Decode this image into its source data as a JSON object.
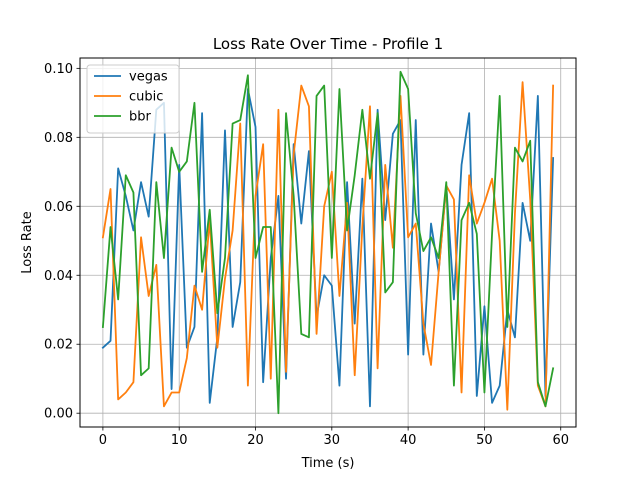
{
  "chart_data": {
    "type": "line",
    "title": "Loss Rate Over Time - Profile 1",
    "xlabel": "Time (s)",
    "ylabel": "Loss Rate",
    "xlim": [
      -3,
      62
    ],
    "ylim": [
      -0.004,
      0.103
    ],
    "xticks": [
      0,
      10,
      20,
      30,
      40,
      50,
      60
    ],
    "yticks": [
      0.0,
      0.02,
      0.04,
      0.06,
      0.08,
      0.1
    ],
    "xtick_labels": [
      "0",
      "10",
      "20",
      "30",
      "40",
      "50",
      "60"
    ],
    "ytick_labels": [
      "0.00",
      "0.02",
      "0.04",
      "0.06",
      "0.08",
      "0.10"
    ],
    "grid": true,
    "legend_position": "top-left",
    "x": [
      0,
      1,
      2,
      3,
      4,
      5,
      6,
      7,
      8,
      9,
      10,
      11,
      12,
      13,
      14,
      15,
      16,
      17,
      18,
      19,
      20,
      21,
      22,
      23,
      24,
      25,
      26,
      27,
      28,
      29,
      30,
      31,
      32,
      33,
      34,
      35,
      36,
      37,
      38,
      39,
      40,
      41,
      42,
      43,
      44,
      45,
      46,
      47,
      48,
      49,
      50,
      51,
      52,
      53,
      54,
      55,
      56,
      57,
      58,
      59
    ],
    "series": [
      {
        "name": "vegas",
        "color": "#1f77b4",
        "values": [
          0.019,
          0.021,
          0.071,
          0.063,
          0.053,
          0.067,
          0.057,
          0.088,
          0.09,
          0.007,
          0.072,
          0.019,
          0.025,
          0.087,
          0.003,
          0.022,
          0.082,
          0.025,
          0.038,
          0.094,
          0.083,
          0.009,
          0.045,
          0.063,
          0.01,
          0.078,
          0.055,
          0.076,
          0.028,
          0.04,
          0.037,
          0.008,
          0.067,
          0.026,
          0.068,
          0.002,
          0.088,
          0.056,
          0.081,
          0.085,
          0.017,
          0.085,
          0.017,
          0.055,
          0.041,
          0.066,
          0.033,
          0.072,
          0.087,
          0.005,
          0.031,
          0.003,
          0.008,
          0.03,
          0.022,
          0.061,
          0.05,
          0.092,
          0.005,
          0.074
        ]
      },
      {
        "name": "cubic",
        "color": "#ff7f0e",
        "values": [
          0.051,
          0.065,
          0.004,
          0.006,
          0.009,
          0.051,
          0.034,
          0.043,
          0.002,
          0.006,
          0.006,
          0.016,
          0.037,
          0.03,
          0.056,
          0.019,
          0.039,
          0.053,
          0.084,
          0.008,
          0.063,
          0.078,
          0.01,
          0.088,
          0.012,
          0.075,
          0.095,
          0.089,
          0.023,
          0.06,
          0.07,
          0.034,
          0.061,
          0.011,
          0.054,
          0.089,
          0.013,
          0.072,
          0.048,
          0.092,
          0.051,
          0.055,
          0.026,
          0.014,
          0.041,
          0.066,
          0.062,
          0.006,
          0.069,
          0.055,
          0.061,
          0.068,
          0.05,
          0.001,
          0.058,
          0.096,
          0.062,
          0.008,
          0.002,
          0.095
        ]
      },
      {
        "name": "bbr",
        "color": "#2ca02c",
        "values": [
          0.025,
          0.054,
          0.033,
          0.069,
          0.064,
          0.011,
          0.013,
          0.067,
          0.045,
          0.077,
          0.07,
          0.073,
          0.09,
          0.041,
          0.059,
          0.029,
          0.045,
          0.084,
          0.085,
          0.098,
          0.045,
          0.054,
          0.054,
          0.0,
          0.087,
          0.063,
          0.023,
          0.022,
          0.092,
          0.095,
          0.045,
          0.094,
          0.053,
          0.069,
          0.088,
          0.068,
          0.087,
          0.035,
          0.038,
          0.099,
          0.094,
          0.058,
          0.047,
          0.051,
          0.045,
          0.067,
          0.008,
          0.056,
          0.061,
          0.052,
          0.006,
          0.052,
          0.092,
          0.025,
          0.077,
          0.073,
          0.079,
          0.009,
          0.002,
          0.013
        ]
      }
    ]
  }
}
